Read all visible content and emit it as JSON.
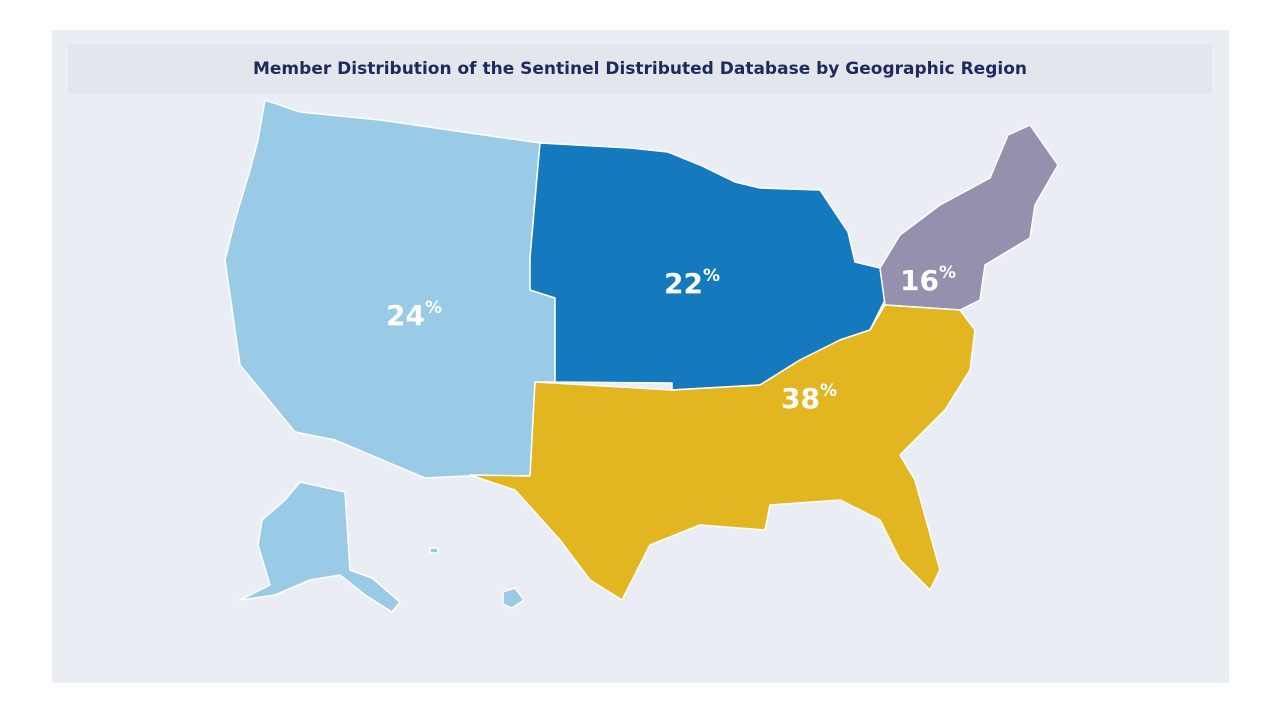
{
  "title": "Member Distribution of the Sentinel Distributed Database by Geographic Region",
  "regions": [
    {
      "value": 24,
      "unit": "%",
      "color": "#9acbe6"
    },
    {
      "value": 22,
      "unit": "%",
      "color": "#147abd"
    },
    {
      "value": 16,
      "unit": "%",
      "color": "#9590ae"
    },
    {
      "value": 38,
      "unit": "%",
      "color": "#e2b620"
    }
  ]
}
